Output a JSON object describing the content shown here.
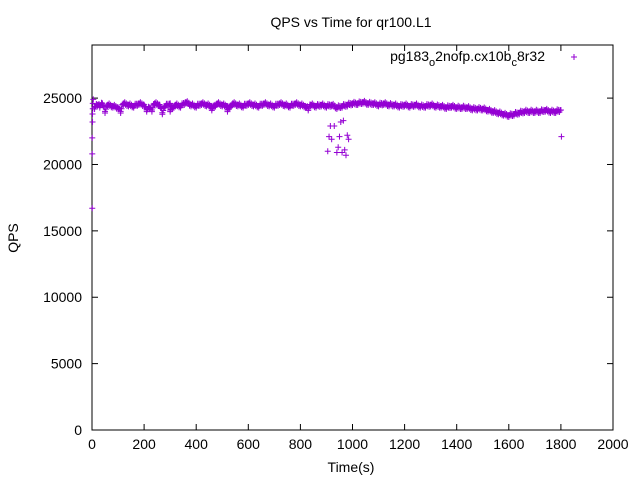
{
  "chart_data": {
    "type": "scatter",
    "title": "QPS vs Time for qr100.L1",
    "xlabel": "Time(s)",
    "ylabel": "QPS",
    "xlim": [
      0,
      2000
    ],
    "ylim": [
      0,
      29000
    ],
    "xticks": [
      0,
      200,
      400,
      600,
      800,
      1000,
      1200,
      1400,
      1600,
      1800,
      2000
    ],
    "yticks": [
      0,
      5000,
      10000,
      15000,
      20000,
      25000
    ],
    "grid": false,
    "legend_position": "top-right",
    "legend": {
      "base": "pg183",
      "sub1": "o",
      "mid": "2nofp.cx10b",
      "sub2": "c",
      "tail": "8r32"
    },
    "series": [
      {
        "name": "pg183_o2nofp.cx10b_c8r32",
        "color": "#9400d3",
        "marker": "+",
        "points": [
          [
            1,
            16700
          ],
          [
            1,
            20800
          ],
          [
            1,
            22000
          ],
          [
            2,
            23200
          ],
          [
            2,
            23800
          ],
          [
            3,
            24200
          ],
          [
            3,
            24600
          ],
          [
            5,
            24900
          ],
          [
            10,
            24300
          ],
          [
            20,
            24500
          ],
          [
            30,
            24400
          ],
          [
            40,
            24600
          ],
          [
            60,
            24500
          ],
          [
            80,
            24400
          ],
          [
            100,
            24300
          ],
          [
            120,
            24600
          ],
          [
            140,
            24500
          ],
          [
            160,
            24400
          ],
          [
            180,
            24600
          ],
          [
            200,
            24500
          ],
          [
            220,
            24300
          ],
          [
            240,
            24600
          ],
          [
            260,
            24500
          ],
          [
            280,
            24400
          ],
          [
            300,
            24600
          ],
          [
            320,
            24500
          ],
          [
            340,
            24400
          ],
          [
            360,
            24700
          ],
          [
            380,
            24500
          ],
          [
            400,
            24400
          ],
          [
            420,
            24600
          ],
          [
            440,
            24500
          ],
          [
            460,
            24400
          ],
          [
            480,
            24600
          ],
          [
            500,
            24500
          ],
          [
            520,
            24400
          ],
          [
            540,
            24600
          ],
          [
            560,
            24500
          ],
          [
            580,
            24400
          ],
          [
            600,
            24600
          ],
          [
            620,
            24500
          ],
          [
            640,
            24400
          ],
          [
            660,
            24600
          ],
          [
            680,
            24500
          ],
          [
            700,
            24400
          ],
          [
            720,
            24600
          ],
          [
            740,
            24500
          ],
          [
            760,
            24400
          ],
          [
            780,
            24600
          ],
          [
            800,
            24500
          ],
          [
            820,
            24400
          ],
          [
            840,
            24500
          ],
          [
            860,
            24400
          ],
          [
            880,
            24500
          ],
          [
            900,
            24400
          ],
          [
            920,
            24500
          ],
          [
            940,
            24300
          ],
          [
            960,
            24400
          ],
          [
            980,
            24500
          ],
          [
            1000,
            24600
          ],
          [
            1020,
            24600
          ],
          [
            1040,
            24700
          ],
          [
            1060,
            24600
          ],
          [
            1080,
            24600
          ],
          [
            1100,
            24500
          ],
          [
            1120,
            24600
          ],
          [
            1140,
            24500
          ],
          [
            1160,
            24500
          ],
          [
            1180,
            24400
          ],
          [
            1200,
            24500
          ],
          [
            1220,
            24400
          ],
          [
            1240,
            24500
          ],
          [
            1260,
            24400
          ],
          [
            1280,
            24400
          ],
          [
            1300,
            24500
          ],
          [
            1320,
            24400
          ],
          [
            1340,
            24400
          ],
          [
            1360,
            24300
          ],
          [
            1380,
            24400
          ],
          [
            1400,
            24300
          ],
          [
            1420,
            24300
          ],
          [
            1440,
            24300
          ],
          [
            1460,
            24200
          ],
          [
            1480,
            24200
          ],
          [
            1500,
            24200
          ],
          [
            1520,
            24100
          ],
          [
            1540,
            24000
          ],
          [
            1560,
            23900
          ],
          [
            1580,
            23800
          ],
          [
            1600,
            23700
          ],
          [
            1620,
            23800
          ],
          [
            1640,
            23900
          ],
          [
            1660,
            24000
          ],
          [
            1680,
            24000
          ],
          [
            1700,
            24000
          ],
          [
            1720,
            24000
          ],
          [
            1740,
            24100
          ],
          [
            1760,
            24000
          ],
          [
            1780,
            24000
          ],
          [
            1800,
            24100
          ],
          [
            50,
            24000
          ],
          [
            110,
            24000
          ],
          [
            210,
            24100
          ],
          [
            230,
            24100
          ],
          [
            270,
            23900
          ],
          [
            300,
            24100
          ],
          [
            460,
            24200
          ],
          [
            520,
            24100
          ],
          [
            830,
            24200
          ],
          [
            1802,
            22100
          ],
          [
            905,
            21000
          ],
          [
            910,
            22100
          ],
          [
            915,
            22900
          ],
          [
            920,
            21900
          ],
          [
            930,
            22900
          ],
          [
            940,
            20900
          ],
          [
            945,
            21300
          ],
          [
            950,
            22100
          ],
          [
            955,
            23200
          ],
          [
            960,
            20900
          ],
          [
            965,
            23300
          ],
          [
            970,
            21100
          ],
          [
            975,
            20700
          ],
          [
            980,
            22200
          ],
          [
            985,
            21900
          ]
        ]
      }
    ]
  }
}
